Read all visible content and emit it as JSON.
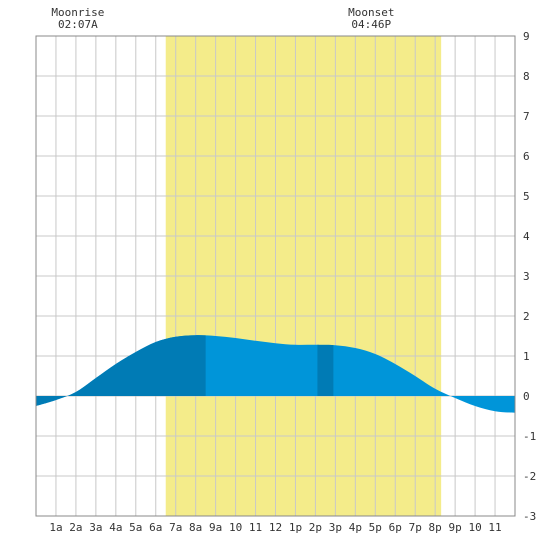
{
  "chart_data": {
    "type": "area",
    "title": "",
    "xlabel": "",
    "ylabel": "",
    "xlim": [
      0,
      24
    ],
    "ylim": [
      -3,
      9
    ],
    "grid": true,
    "x_tick_labels": [
      "1a",
      "2a",
      "3a",
      "4a",
      "5a",
      "6a",
      "7a",
      "8a",
      "9a",
      "10",
      "11",
      "12",
      "1p",
      "2p",
      "3p",
      "4p",
      "5p",
      "6p",
      "7p",
      "8p",
      "9p",
      "10",
      "11"
    ],
    "y_tick_labels": [
      "-3",
      "-2",
      "-1",
      "0",
      "1",
      "2",
      "3",
      "4",
      "5",
      "6",
      "7",
      "8",
      "9"
    ],
    "daylight": {
      "start": 6.5,
      "end": 20.3,
      "color": "#f4ec8a"
    },
    "highlight_bands": [
      {
        "start": 0,
        "end": 8.5
      },
      {
        "start": 14.1,
        "end": 14.9
      }
    ],
    "series": [
      {
        "values_color": "#0095d9",
        "highlight_color": "#007bb5",
        "x": [
          0,
          1,
          2,
          3,
          4,
          5,
          6,
          7,
          8,
          9,
          10,
          11,
          12,
          13,
          14,
          15,
          16,
          17,
          18,
          19,
          20,
          21,
          22,
          23,
          24
        ],
        "values": [
          -0.25,
          -0.1,
          0.1,
          0.45,
          0.8,
          1.1,
          1.35,
          1.48,
          1.52,
          1.5,
          1.45,
          1.38,
          1.32,
          1.28,
          1.28,
          1.27,
          1.2,
          1.05,
          0.8,
          0.5,
          0.18,
          -0.05,
          -0.25,
          -0.38,
          -0.42
        ]
      }
    ],
    "annotations": [
      {
        "label": "Moonrise",
        "time": "02:07A",
        "x": 2.1
      },
      {
        "label": "Moonset",
        "time": "04:46P",
        "x": 16.8
      }
    ]
  }
}
